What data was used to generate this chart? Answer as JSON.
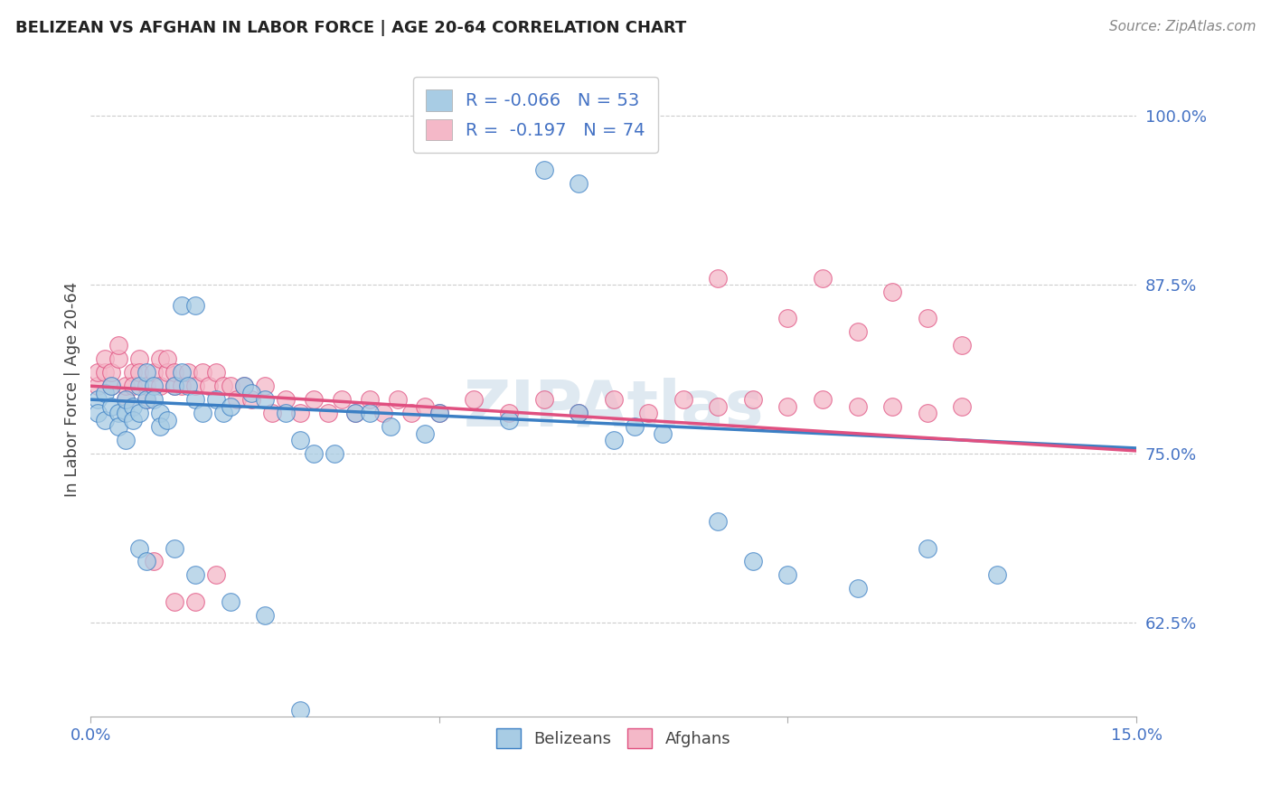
{
  "title": "BELIZEAN VS AFGHAN IN LABOR FORCE | AGE 20-64 CORRELATION CHART",
  "source": "Source: ZipAtlas.com",
  "ylabel": "In Labor Force | Age 20-64",
  "xlim": [
    0.0,
    0.15
  ],
  "ylim": [
    0.555,
    1.04
  ],
  "yticks": [
    0.625,
    0.75,
    0.875,
    1.0
  ],
  "ytick_labels": [
    "62.5%",
    "75.0%",
    "87.5%",
    "100.0%"
  ],
  "xticks": [
    0.0,
    0.05,
    0.1,
    0.15
  ],
  "xtick_labels": [
    "0.0%",
    "",
    "",
    "15.0%"
  ],
  "legend_labels": [
    "Belizeans",
    "Afghans"
  ],
  "R_belizean": -0.066,
  "N_belizean": 53,
  "R_afghan": -0.197,
  "N_afghan": 74,
  "color_belizean": "#a8cce4",
  "color_afghan": "#f4b8c8",
  "color_belizean_line": "#3b7fc4",
  "color_afghan_line": "#e05080",
  "watermark": "ZIPAtlas",
  "belizean_x": [
    0.001,
    0.001,
    0.002,
    0.002,
    0.003,
    0.003,
    0.004,
    0.004,
    0.005,
    0.005,
    0.005,
    0.006,
    0.006,
    0.007,
    0.007,
    0.008,
    0.008,
    0.009,
    0.009,
    0.01,
    0.01,
    0.011,
    0.012,
    0.013,
    0.014,
    0.015,
    0.016,
    0.018,
    0.019,
    0.02,
    0.022,
    0.023,
    0.025,
    0.028,
    0.03,
    0.032,
    0.035,
    0.038,
    0.04,
    0.043,
    0.048,
    0.05,
    0.06,
    0.07,
    0.075,
    0.078,
    0.082,
    0.09,
    0.095,
    0.1,
    0.11,
    0.12,
    0.13
  ],
  "belizean_y": [
    0.79,
    0.78,
    0.795,
    0.775,
    0.8,
    0.785,
    0.78,
    0.77,
    0.78,
    0.79,
    0.76,
    0.785,
    0.775,
    0.8,
    0.78,
    0.81,
    0.79,
    0.8,
    0.79,
    0.78,
    0.77,
    0.775,
    0.8,
    0.81,
    0.8,
    0.79,
    0.78,
    0.79,
    0.78,
    0.785,
    0.8,
    0.795,
    0.79,
    0.78,
    0.76,
    0.75,
    0.75,
    0.78,
    0.78,
    0.77,
    0.765,
    0.78,
    0.775,
    0.78,
    0.76,
    0.77,
    0.765,
    0.7,
    0.67,
    0.66,
    0.65,
    0.68,
    0.66
  ],
  "belizean_y_outliers": [
    [
      0.065,
      0.96
    ],
    [
      0.07,
      0.95
    ],
    [
      0.012,
      0.68
    ],
    [
      0.015,
      0.66
    ],
    [
      0.02,
      0.64
    ],
    [
      0.025,
      0.63
    ],
    [
      0.03,
      0.56
    ],
    [
      0.013,
      0.86
    ],
    [
      0.015,
      0.86
    ],
    [
      0.007,
      0.68
    ],
    [
      0.008,
      0.67
    ]
  ],
  "afghan_x": [
    0.001,
    0.001,
    0.002,
    0.002,
    0.003,
    0.003,
    0.004,
    0.004,
    0.005,
    0.005,
    0.006,
    0.006,
    0.007,
    0.007,
    0.008,
    0.008,
    0.009,
    0.01,
    0.01,
    0.011,
    0.011,
    0.012,
    0.012,
    0.013,
    0.014,
    0.015,
    0.016,
    0.017,
    0.018,
    0.019,
    0.02,
    0.021,
    0.022,
    0.023,
    0.025,
    0.026,
    0.028,
    0.03,
    0.032,
    0.034,
    0.036,
    0.038,
    0.04,
    0.042,
    0.044,
    0.046,
    0.048,
    0.05,
    0.055,
    0.06,
    0.065,
    0.07,
    0.075,
    0.08,
    0.085,
    0.09,
    0.095,
    0.1,
    0.105,
    0.11,
    0.115,
    0.12,
    0.125,
    0.09,
    0.1,
    0.105,
    0.11,
    0.115,
    0.12,
    0.125,
    0.009,
    0.012,
    0.015,
    0.018
  ],
  "afghan_y": [
    0.8,
    0.81,
    0.81,
    0.82,
    0.8,
    0.81,
    0.82,
    0.83,
    0.79,
    0.8,
    0.81,
    0.8,
    0.82,
    0.81,
    0.79,
    0.8,
    0.81,
    0.82,
    0.8,
    0.81,
    0.82,
    0.8,
    0.81,
    0.8,
    0.81,
    0.8,
    0.81,
    0.8,
    0.81,
    0.8,
    0.8,
    0.79,
    0.8,
    0.79,
    0.8,
    0.78,
    0.79,
    0.78,
    0.79,
    0.78,
    0.79,
    0.78,
    0.79,
    0.78,
    0.79,
    0.78,
    0.785,
    0.78,
    0.79,
    0.78,
    0.79,
    0.78,
    0.79,
    0.78,
    0.79,
    0.785,
    0.79,
    0.785,
    0.79,
    0.785,
    0.785,
    0.78,
    0.785,
    0.88,
    0.85,
    0.88,
    0.84,
    0.87,
    0.85,
    0.83,
    0.67,
    0.64,
    0.64,
    0.66
  ],
  "line_belizean": {
    "x0": 0.0,
    "y0": 0.79,
    "x1": 0.15,
    "y1": 0.754
  },
  "line_afghan": {
    "x0": 0.0,
    "y0": 0.8,
    "x1": 0.15,
    "y1": 0.752
  }
}
